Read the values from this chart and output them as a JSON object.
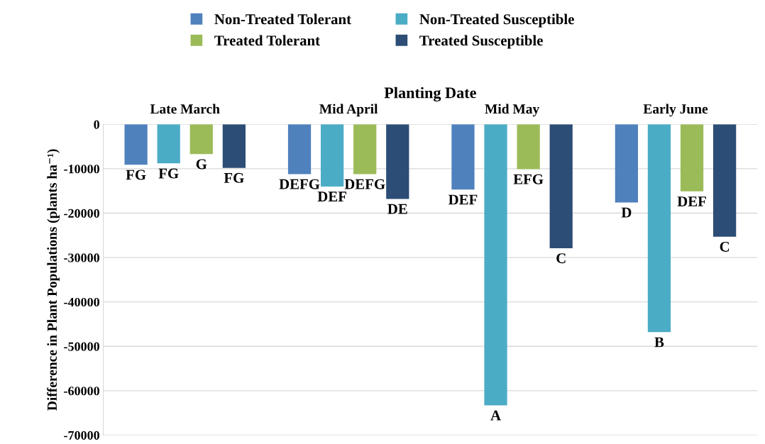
{
  "chart_data": {
    "type": "bar",
    "xlabel": "Planting Date",
    "ylabel": "Difference in Plant Populations (plants ha⁻¹)",
    "categories": [
      "Late March",
      "Mid April",
      "Mid May",
      "Early June"
    ],
    "series": [
      {
        "name": "Non-Treated Tolerant",
        "color": "#4f81bd",
        "values": [
          -9100,
          -11200,
          -14700,
          -17600
        ],
        "value_labels": [
          "FG",
          "DEFG",
          "DEF",
          "D"
        ]
      },
      {
        "name": "Non-Treated Susceptible",
        "color": "#4bacc6",
        "values": [
          -8800,
          -14000,
          -63300,
          -46800
        ],
        "value_labels": [
          "FG",
          "DEF",
          "A",
          "B"
        ]
      },
      {
        "name": "Treated Tolerant",
        "color": "#9bbb59",
        "values": [
          -6700,
          -11200,
          -10100,
          -15100
        ],
        "value_labels": [
          "G",
          "DEFG",
          "EFG",
          "DEF"
        ]
      },
      {
        "name": "Treated Susceptible",
        "color": "#2c4d75",
        "values": [
          -9800,
          -16800,
          -27900,
          -25300
        ],
        "value_labels": [
          "FG",
          "DE",
          "C",
          "C"
        ]
      }
    ],
    "ylim": [
      -70000,
      0
    ],
    "yticks": [
      0,
      -10000,
      -20000,
      -30000,
      -40000,
      -50000,
      -60000,
      -70000
    ],
    "grid": "y",
    "legend": "top"
  }
}
